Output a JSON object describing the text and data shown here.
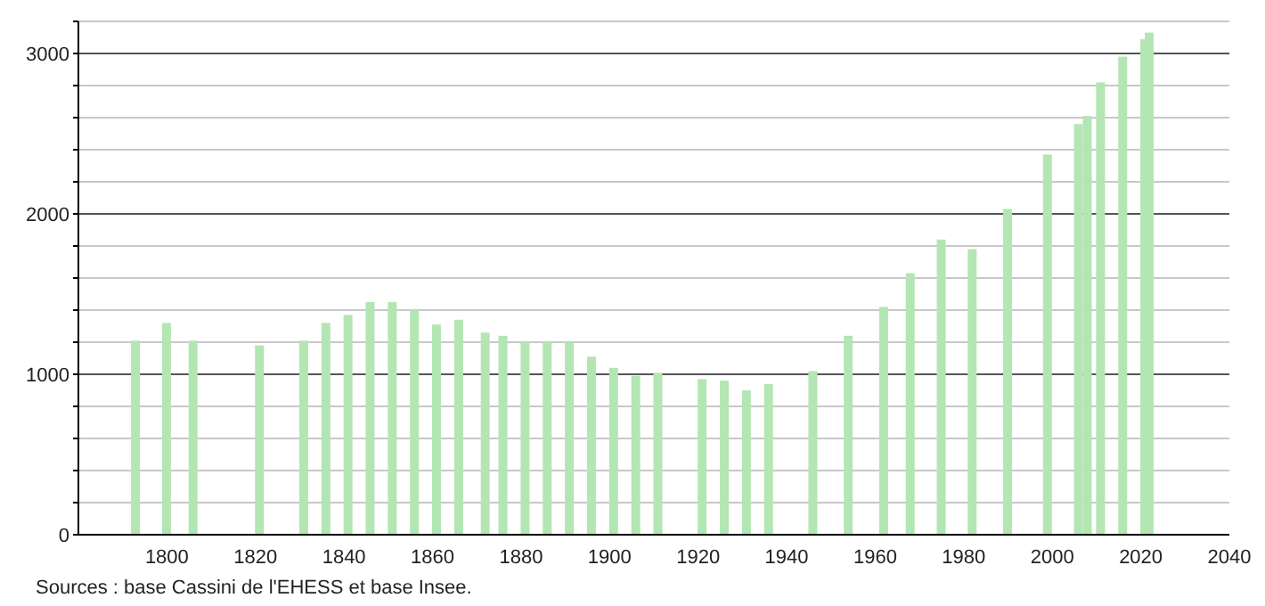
{
  "chart_data": {
    "type": "bar",
    "x": [
      1793,
      1800,
      1806,
      1821,
      1831,
      1836,
      1841,
      1846,
      1851,
      1856,
      1861,
      1866,
      1872,
      1876,
      1881,
      1886,
      1891,
      1896,
      1901,
      1906,
      1911,
      1921,
      1926,
      1931,
      1936,
      1946,
      1954,
      1962,
      1968,
      1975,
      1982,
      1990,
      1999,
      2006,
      2008,
      2011,
      2016,
      2021,
      2022
    ],
    "values": [
      1210,
      1320,
      1210,
      1180,
      1210,
      1320,
      1370,
      1450,
      1450,
      1400,
      1310,
      1340,
      1260,
      1240,
      1200,
      1200,
      1200,
      1110,
      1040,
      990,
      1010,
      970,
      960,
      900,
      940,
      1020,
      1240,
      1420,
      1630,
      1840,
      1780,
      2030,
      2370,
      2560,
      2610,
      2820,
      2980,
      3090,
      3130
    ],
    "color": "#b3e6b3",
    "xlim": [
      1780,
      2040
    ],
    "xticks": [
      1800,
      1820,
      1840,
      1860,
      1880,
      1900,
      1920,
      1940,
      1960,
      1980,
      2000,
      2020,
      2040
    ],
    "ylim": [
      0,
      3200
    ],
    "yticks": [
      0,
      {
        "value": 200,
        "label": null
      },
      {
        "value": 400,
        "label": null
      },
      {
        "value": 600,
        "label": null
      },
      {
        "value": 800,
        "label": null
      },
      1000,
      {
        "value": 1200,
        "label": null
      },
      {
        "value": 1400,
        "label": null
      },
      {
        "value": 1600,
        "label": null
      },
      {
        "value": 1800,
        "label": null
      },
      2000,
      {
        "value": 2200,
        "label": null
      },
      {
        "value": 2400,
        "label": null
      },
      {
        "value": 2600,
        "label": null
      },
      {
        "value": 2800,
        "label": null
      },
      3000,
      {
        "value": 3200,
        "label": null
      }
    ],
    "grid": "y",
    "annotations": [
      "Sources : base Cassini de l'EHESS et base Insee."
    ]
  }
}
